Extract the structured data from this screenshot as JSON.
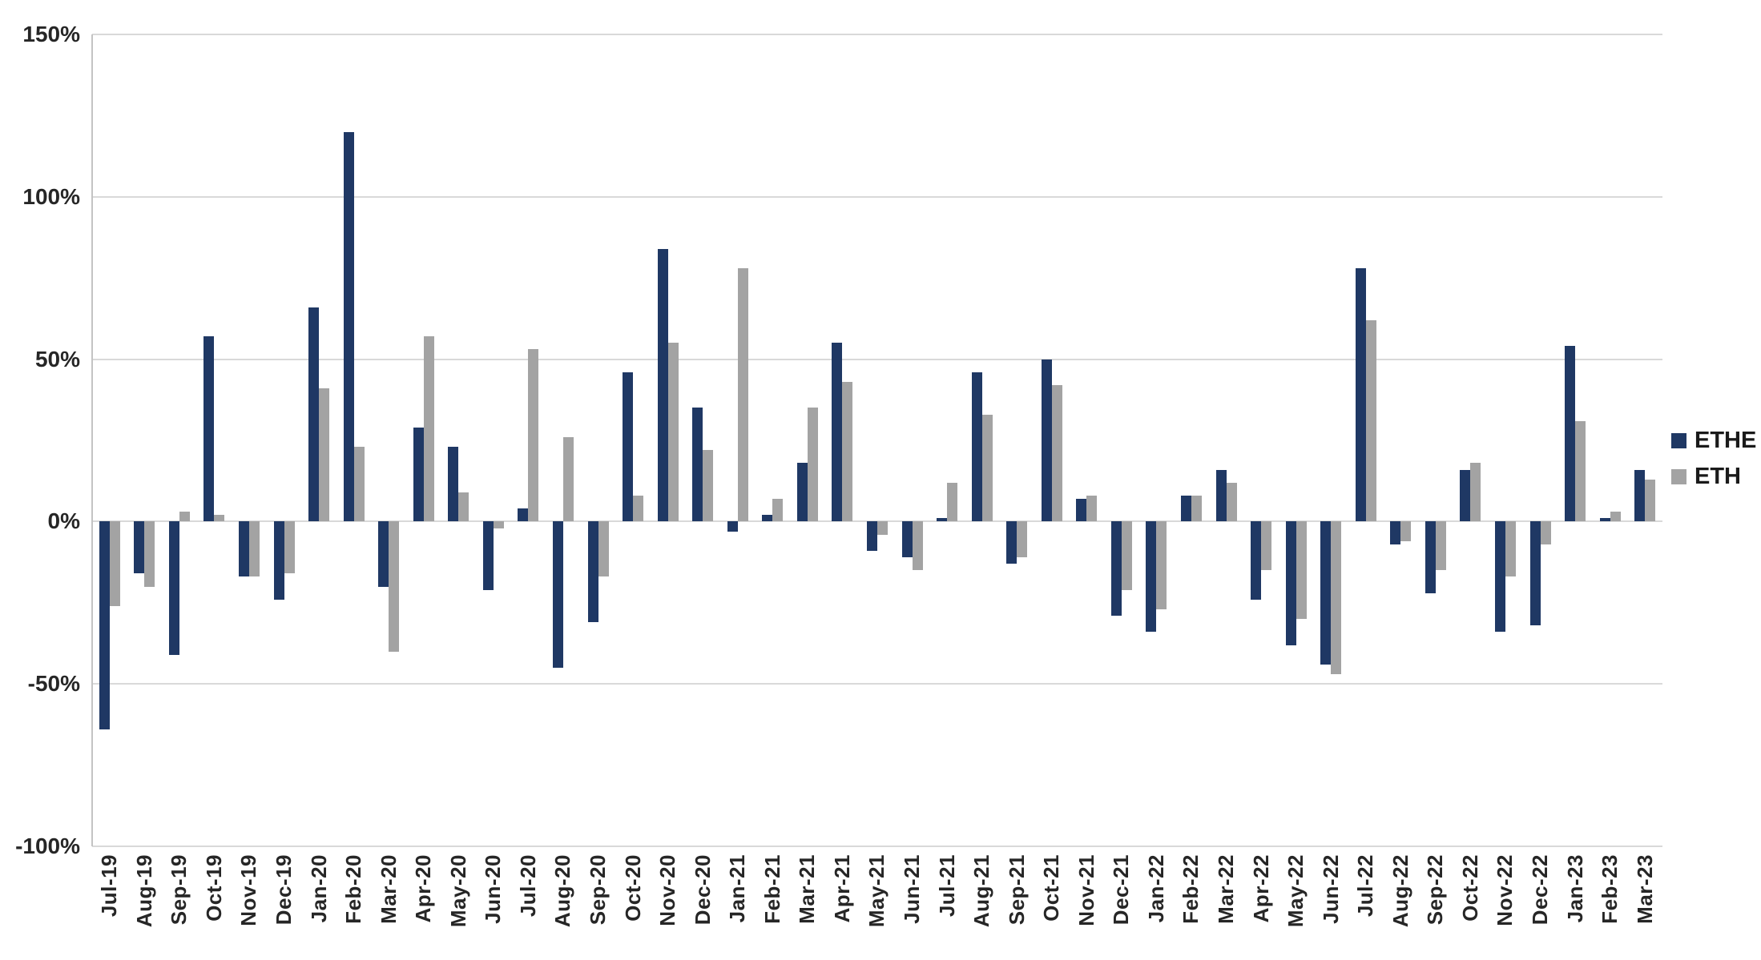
{
  "legend": {
    "items": [
      {
        "label": "ETHE",
        "color": "#1f3864"
      },
      {
        "label": "ETH",
        "color": "#a3a3a3"
      }
    ]
  },
  "axes": {
    "y_tick_labels": [
      "150%",
      "100%",
      "50%",
      "0%",
      "-50%",
      "-100%"
    ],
    "y_tick_values": [
      150,
      100,
      50,
      0,
      -50,
      -100
    ]
  },
  "chart_data": {
    "type": "bar",
    "title": "",
    "xlabel": "",
    "ylabel": "",
    "ylim": [
      -100,
      150
    ],
    "grid": true,
    "legend_position": "right",
    "categories": [
      "Jul-19",
      "Aug-19",
      "Sep-19",
      "Oct-19",
      "Nov-19",
      "Dec-19",
      "Jan-20",
      "Feb-20",
      "Mar-20",
      "Apr-20",
      "May-20",
      "Jun-20",
      "Jul-20",
      "Aug-20",
      "Sep-20",
      "Oct-20",
      "Nov-20",
      "Dec-20",
      "Jan-21",
      "Feb-21",
      "Mar-21",
      "Apr-21",
      "May-21",
      "Jun-21",
      "Jul-21",
      "Aug-21",
      "Sep-21",
      "Oct-21",
      "Nov-21",
      "Dec-21",
      "Jan-22",
      "Feb-22",
      "Mar-22",
      "Apr-22",
      "May-22",
      "Jun-22",
      "Jul-22",
      "Aug-22",
      "Sep-22",
      "Oct-22",
      "Nov-22",
      "Dec-22",
      "Jan-23",
      "Feb-23",
      "Mar-23"
    ],
    "series": [
      {
        "name": "ETHE",
        "color": "#1f3864",
        "values": [
          -64,
          -16,
          -41,
          57,
          -17,
          -24,
          66,
          120,
          -20,
          29,
          23,
          -21,
          4,
          -45,
          -31,
          46,
          84,
          35,
          -3,
          2,
          18,
          55,
          -9,
          -11,
          1,
          46,
          -13,
          50,
          7,
          -29,
          -34,
          8,
          16,
          -24,
          -38,
          -44,
          78,
          -7,
          -22,
          16,
          -34,
          -32,
          54,
          1,
          16
        ]
      },
      {
        "name": "ETH",
        "color": "#a3a3a3",
        "values": [
          -26,
          -20,
          3,
          2,
          -17,
          -16,
          41,
          23,
          -40,
          57,
          9,
          -2,
          53,
          26,
          -17,
          8,
          55,
          22,
          78,
          7,
          35,
          43,
          -4,
          -15,
          12,
          33,
          -11,
          42,
          8,
          -21,
          -27,
          8,
          12,
          -15,
          -30,
          -47,
          62,
          -6,
          -15,
          18,
          -17,
          -7,
          31,
          3,
          13
        ]
      }
    ]
  }
}
